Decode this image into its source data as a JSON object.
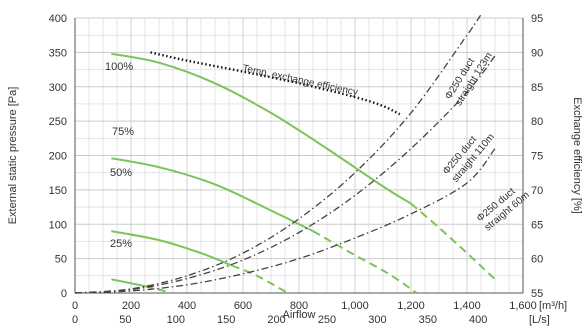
{
  "chart_data": {
    "type": "line",
    "xlabel": "Airflow",
    "x_unit_primary": "[m³/h]",
    "x_unit_secondary": "[L/s]",
    "ylabel_left": "External static pressure [Pa]",
    "ylabel_right": "Exchange efficiency [%]",
    "x_primary_ticks": [
      "0",
      "200",
      "400",
      "600",
      "800",
      "1,000",
      "1,200",
      "1,400",
      "1,600"
    ],
    "x_secondary_ticks": [
      "0",
      "50",
      "100",
      "150",
      "200",
      "250",
      "300",
      "350",
      "400"
    ],
    "y_left_ticks": [
      "0",
      "50",
      "100",
      "150",
      "200",
      "250",
      "300",
      "350",
      "400"
    ],
    "y_right_ticks": [
      "55",
      "60",
      "65",
      "70",
      "75",
      "80",
      "85",
      "90",
      "95"
    ],
    "xlim": [
      0,
      1600
    ],
    "ylim_left": [
      0,
      400
    ],
    "ylim_right": [
      55,
      95
    ],
    "grid": true,
    "colors": {
      "fan": "#7dc35a",
      "duct": "#444444",
      "efficiency": "#111111",
      "grid": "#cccccc",
      "axis": "#555555"
    },
    "fan_curves": [
      {
        "label": "100%",
        "solid": [
          [
            130,
            348
          ],
          [
            300,
            335
          ],
          [
            500,
            305
          ],
          [
            700,
            262
          ],
          [
            900,
            210
          ],
          [
            1100,
            155
          ],
          [
            1200,
            130
          ]
        ],
        "dashed": [
          [
            1200,
            130
          ],
          [
            1300,
            95
          ],
          [
            1400,
            58
          ],
          [
            1500,
            20
          ]
        ]
      },
      {
        "label": "75%",
        "solid": [
          [
            130,
            196
          ],
          [
            300,
            183
          ],
          [
            500,
            158
          ],
          [
            700,
            120
          ],
          [
            850,
            90
          ]
        ],
        "dashed": [
          [
            850,
            90
          ],
          [
            1000,
            55
          ],
          [
            1120,
            28
          ],
          [
            1220,
            0
          ]
        ]
      },
      {
        "label": "50%",
        "solid": [
          [
            130,
            90
          ],
          [
            300,
            77
          ],
          [
            450,
            58
          ],
          [
            560,
            40
          ]
        ],
        "dashed": [
          [
            560,
            40
          ],
          [
            650,
            25
          ],
          [
            760,
            0
          ]
        ]
      },
      {
        "label": "25%",
        "solid": [
          [
            130,
            20
          ],
          [
            250,
            10
          ]
        ],
        "dashed": [
          [
            250,
            10
          ],
          [
            300,
            5
          ],
          [
            345,
            0
          ]
        ]
      }
    ],
    "duct_curves": [
      {
        "label_lines": [
          "Φ250 duct",
          "straight 123m"
        ],
        "points": [
          [
            0,
            0
          ],
          [
            200,
            6
          ],
          [
            400,
            25
          ],
          [
            600,
            58
          ],
          [
            800,
            108
          ],
          [
            1000,
            175
          ],
          [
            1200,
            262
          ],
          [
            1400,
            375
          ],
          [
            1450,
            405
          ]
        ]
      },
      {
        "label_lines": [
          "Φ250 duct",
          "straight 110m"
        ],
        "points": [
          [
            0,
            0
          ],
          [
            200,
            5
          ],
          [
            400,
            21
          ],
          [
            600,
            48
          ],
          [
            800,
            88
          ],
          [
            1000,
            142
          ],
          [
            1200,
            210
          ],
          [
            1400,
            292
          ],
          [
            1500,
            345
          ]
        ]
      },
      {
        "label_lines": [
          "Φ250 duct",
          "straight 60m"
        ],
        "points": [
          [
            0,
            0
          ],
          [
            200,
            3
          ],
          [
            400,
            12
          ],
          [
            600,
            28
          ],
          [
            800,
            50
          ],
          [
            1000,
            80
          ],
          [
            1200,
            115
          ],
          [
            1400,
            160
          ],
          [
            1500,
            210
          ]
        ]
      }
    ],
    "efficiency_curve": {
      "label": "Temp. exchange efficiency",
      "points": [
        [
          270,
          90
        ],
        [
          400,
          88.8
        ],
        [
          600,
          87.2
        ],
        [
          800,
          85.5
        ],
        [
          1000,
          83.5
        ],
        [
          1100,
          82.2
        ],
        [
          1160,
          81
        ]
      ]
    }
  }
}
